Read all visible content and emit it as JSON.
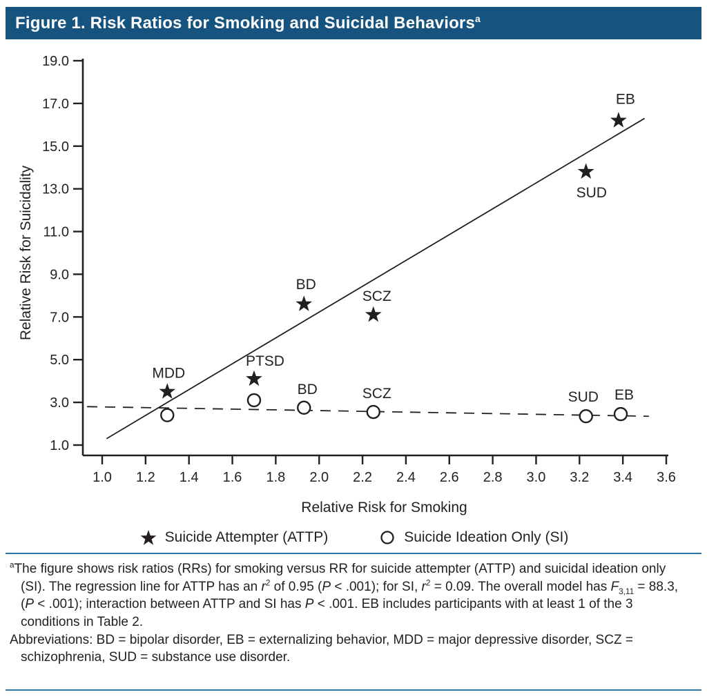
{
  "title": {
    "text": "Figure 1. Risk Ratios for Smoking and Suicidal Behaviors",
    "sup": "a"
  },
  "colors": {
    "header_bg": "#17537f",
    "rule": "#2679a8",
    "ink": "#231f20"
  },
  "chart_data": {
    "type": "scatter",
    "title": "Figure 1. Risk Ratios for Smoking and Suicidal Behaviors",
    "xlabel": "Relative Risk for Smoking",
    "ylabel": "Relative Risk for Suicidality",
    "xlim": [
      1.0,
      3.6
    ],
    "ylim": [
      1.0,
      19.0
    ],
    "xticks": [
      "1.0",
      "1.2",
      "1.4",
      "1.6",
      "1.8",
      "2.0",
      "2.2",
      "2.4",
      "2.6",
      "2.8",
      "3.0",
      "3.2",
      "3.4",
      "3.6"
    ],
    "yticks": [
      "1.0",
      "3.0",
      "5.0",
      "7.0",
      "9.0",
      "11.0",
      "13.0",
      "15.0",
      "17.0",
      "19.0"
    ],
    "grid": false,
    "legend_position": "bottom",
    "series": [
      {
        "name": "Suicide Attempter (ATTP)",
        "short": "ATTP",
        "marker": "star",
        "r2": 0.95,
        "line": {
          "style": "solid",
          "x1": 1.02,
          "y1": 1.3,
          "x2": 3.5,
          "y2": 16.3
        },
        "points": [
          {
            "label": "MDD",
            "x": 1.3,
            "y": 3.5,
            "ldx": 2,
            "ldy": -20
          },
          {
            "label": "PTSD",
            "x": 1.7,
            "y": 4.1,
            "ldx": 16,
            "ldy": -19
          },
          {
            "label": "BD",
            "x": 1.93,
            "y": 7.6,
            "ldx": 3,
            "ldy": -22
          },
          {
            "label": "SCZ",
            "x": 2.25,
            "y": 7.1,
            "ldx": 5,
            "ldy": -20
          },
          {
            "label": "SUD",
            "x": 3.23,
            "y": 13.8,
            "ldx": 8,
            "ldy": 37
          },
          {
            "label": "EB",
            "x": 3.38,
            "y": 16.2,
            "ldx": 10,
            "ldy": -24
          }
        ]
      },
      {
        "name": "Suicide Ideation Only (SI)",
        "short": "SI",
        "marker": "circle",
        "r2": 0.09,
        "line": {
          "style": "dashed",
          "x1": 0.93,
          "y1": 2.8,
          "x2": 3.52,
          "y2": 2.35
        },
        "points": [
          {
            "label": "",
            "x": 1.3,
            "y": 2.4
          },
          {
            "label": "",
            "x": 1.7,
            "y": 3.1
          },
          {
            "label": "BD",
            "x": 1.93,
            "y": 2.75,
            "ldx": 5,
            "ldy": -20
          },
          {
            "label": "SCZ",
            "x": 2.25,
            "y": 2.55,
            "ldx": 5,
            "ldy": -20
          },
          {
            "label": "SUD",
            "x": 3.23,
            "y": 2.35,
            "ldx": -4,
            "ldy": -21
          },
          {
            "label": "EB",
            "x": 3.39,
            "y": 2.45,
            "ldx": 5,
            "ldy": -21
          }
        ]
      }
    ]
  },
  "footnotes": [
    {
      "segments": [
        {
          "t": "a",
          "f": "sup"
        },
        {
          "t": "The figure shows risk ratios (RRs) for smoking versus RR for suicide attempter (ATTP) and suicidal ideation only (SI). The regression line for ATTP has an "
        },
        {
          "t": "r",
          "f": "i"
        },
        {
          "t": "2",
          "f": "sup"
        },
        {
          "t": " of 0.95 ("
        },
        {
          "t": "P",
          "f": "i"
        },
        {
          "t": " < .001); for SI, "
        },
        {
          "t": "r",
          "f": "i"
        },
        {
          "t": "2",
          "f": "sup"
        },
        {
          "t": " = 0.09. The overall model has "
        },
        {
          "t": "F",
          "f": "i"
        },
        {
          "t": "3,11",
          "f": "sub"
        },
        {
          "t": " = 88.3, ("
        },
        {
          "t": "P",
          "f": "i"
        },
        {
          "t": " < .001); interaction between ATTP and SI has "
        },
        {
          "t": "P",
          "f": "i"
        },
        {
          "t": " < .001. EB includes participants with at least 1 of the 3 conditions in Table 2."
        }
      ]
    },
    {
      "segments": [
        {
          "t": "Abbreviations: BD = bipolar disorder, EB = externalizing behavior, MDD = major depressive disorder, SCZ = schizophrenia, SUD = substance use disorder."
        }
      ]
    }
  ]
}
